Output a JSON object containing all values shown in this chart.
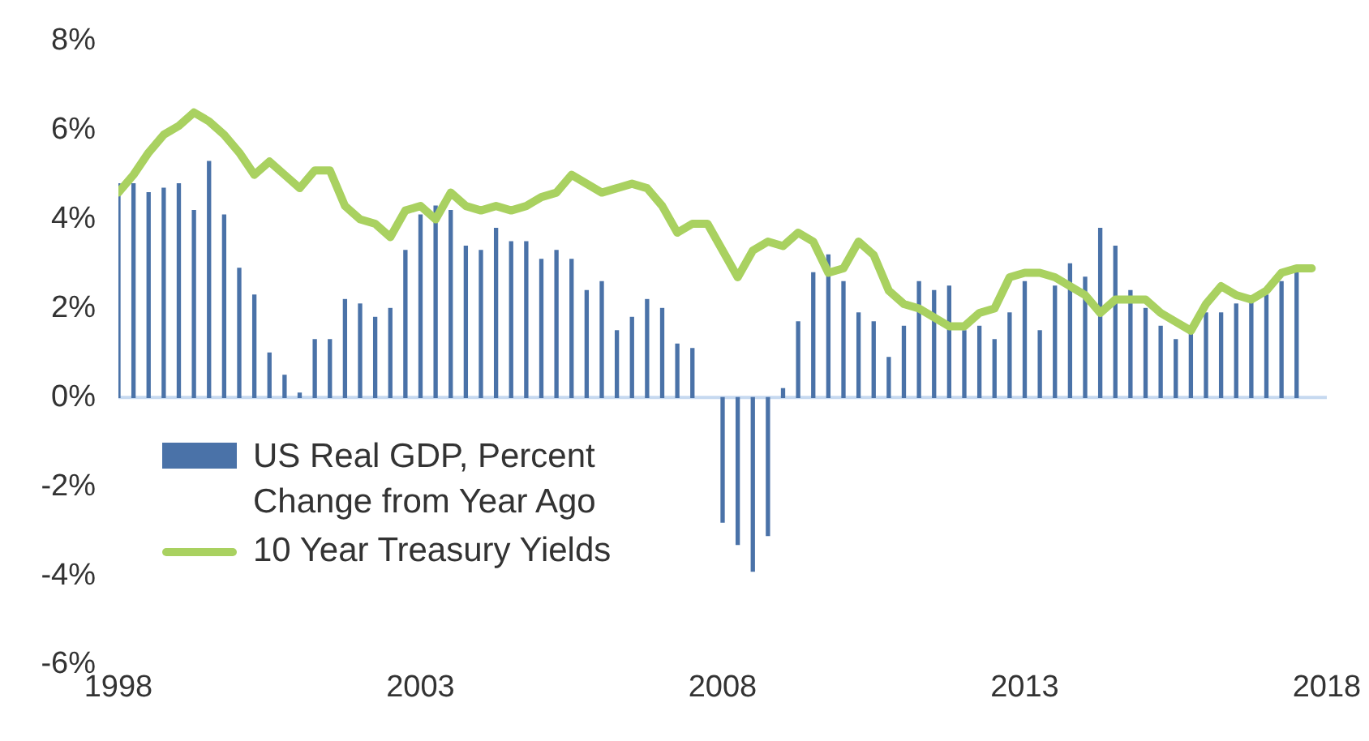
{
  "chart_data": {
    "type": "bar",
    "xlim": [
      1998,
      2018
    ],
    "xticks": [
      1998,
      2003,
      2008,
      2013,
      2018
    ],
    "ylim": [
      -6,
      8
    ],
    "yticks": [
      {
        "value": -6,
        "label": "-6%"
      },
      {
        "value": -4,
        "label": "-4%"
      },
      {
        "value": -2,
        "label": "-2%"
      },
      {
        "value": 0,
        "label": "0%"
      },
      {
        "value": 2,
        "label": "2%"
      },
      {
        "value": 4,
        "label": "4%"
      },
      {
        "value": 6,
        "label": "6%"
      },
      {
        "value": 8,
        "label": "8%"
      }
    ],
    "legend": "bottom left",
    "grid": false,
    "ref_lines": [
      {
        "axis": "y",
        "value": 0,
        "color": "#c6d9f0"
      }
    ],
    "series": [
      {
        "name": "US Real GDP, Percent Change from Year Ago",
        "color": "#4a72a8",
        "x": [
          1998,
          1998.25,
          1998.5,
          1998.75,
          1999,
          1999.25,
          1999.5,
          1999.75,
          2000,
          2000.25,
          2000.5,
          2000.75,
          2001,
          2001.25,
          2001.5,
          2001.75,
          2002,
          2002.25,
          2002.5,
          2002.75,
          2003,
          2003.25,
          2003.5,
          2003.75,
          2004,
          2004.25,
          2004.5,
          2004.75,
          2005,
          2005.25,
          2005.5,
          2005.75,
          2006,
          2006.25,
          2006.5,
          2006.75,
          2007,
          2007.25,
          2007.5,
          2007.75,
          2008,
          2008.25,
          2008.5,
          2008.75,
          2009,
          2009.25,
          2009.5,
          2009.75,
          2010,
          2010.25,
          2010.5,
          2010.75,
          2011,
          2011.25,
          2011.5,
          2011.75,
          2012,
          2012.25,
          2012.5,
          2012.75,
          2013,
          2013.25,
          2013.5,
          2013.75,
          2014,
          2014.25,
          2014.5,
          2014.75,
          2015,
          2015.25,
          2015.5,
          2015.75,
          2016,
          2016.25,
          2016.5,
          2016.75,
          2017,
          2017.25,
          2017.5
        ],
        "values": [
          4.8,
          4.8,
          4.6,
          4.7,
          4.8,
          4.2,
          5.3,
          4.1,
          2.9,
          2.3,
          1.0,
          0.5,
          0.1,
          1.3,
          1.3,
          2.2,
          2.1,
          1.8,
          2.0,
          3.3,
          4.1,
          4.3,
          4.2,
          3.4,
          3.3,
          3.8,
          3.5,
          3.5,
          3.1,
          3.3,
          3.1,
          2.4,
          2.6,
          1.5,
          1.8,
          2.2,
          2.0,
          1.2,
          1.1,
          null,
          -2.8,
          -3.3,
          -3.9,
          -3.1,
          0.2,
          1.7,
          2.8,
          3.2,
          2.6,
          1.9,
          1.7,
          0.9,
          1.6,
          2.6,
          2.4,
          2.5,
          1.5,
          1.6,
          1.3,
          1.9,
          2.6,
          1.5,
          2.5,
          3.0,
          2.7,
          3.8,
          3.4,
          2.4,
          2.0,
          1.6,
          1.3,
          1.5,
          1.9,
          1.9,
          2.1,
          2.2,
          2.3,
          2.6,
          2.8
        ]
      },
      {
        "name": "10 Year Treasury Yields",
        "type": "line",
        "color": "#a9d160",
        "marker": "none",
        "line_style": "solid",
        "x": [
          1998,
          1998.25,
          1998.5,
          1998.75,
          1999,
          1999.25,
          1999.5,
          1999.75,
          2000,
          2000.25,
          2000.5,
          2000.75,
          2001,
          2001.25,
          2001.5,
          2001.75,
          2002,
          2002.25,
          2002.5,
          2002.75,
          2003,
          2003.25,
          2003.5,
          2003.75,
          2004,
          2004.25,
          2004.5,
          2004.75,
          2005,
          2005.25,
          2005.5,
          2005.75,
          2006,
          2006.25,
          2006.5,
          2006.75,
          2007,
          2007.25,
          2007.5,
          2007.75,
          2008,
          2008.25,
          2008.5,
          2008.75,
          2009,
          2009.25,
          2009.5,
          2009.75,
          2010,
          2010.25,
          2010.5,
          2010.75,
          2011,
          2011.25,
          2011.5,
          2011.75,
          2012,
          2012.25,
          2012.5,
          2012.75,
          2013,
          2013.25,
          2013.5,
          2013.75,
          2014,
          2014.25,
          2014.5,
          2014.75,
          2015,
          2015.25,
          2015.5,
          2015.75,
          2016,
          2016.25,
          2016.5,
          2016.75,
          2017,
          2017.25,
          2017.5,
          2017.75
        ],
        "values": [
          4.6,
          5.0,
          5.5,
          5.9,
          6.1,
          6.4,
          6.2,
          5.9,
          5.5,
          5.0,
          5.3,
          5.0,
          4.7,
          5.1,
          5.1,
          4.3,
          4.0,
          3.9,
          3.6,
          4.2,
          4.3,
          4.0,
          4.6,
          4.3,
          4.2,
          4.3,
          4.2,
          4.3,
          4.5,
          4.6,
          5.0,
          4.8,
          4.6,
          4.7,
          4.8,
          4.7,
          4.3,
          3.7,
          3.9,
          3.9,
          3.3,
          2.7,
          3.3,
          3.5,
          3.4,
          3.7,
          3.5,
          2.8,
          2.9,
          3.5,
          3.2,
          2.4,
          2.1,
          2.0,
          1.8,
          1.6,
          1.6,
          1.9,
          2.0,
          2.7,
          2.8,
          2.8,
          2.7,
          2.5,
          2.3,
          1.9,
          2.2,
          2.2,
          2.2,
          1.9,
          1.7,
          1.5,
          2.1,
          2.5,
          2.3,
          2.2,
          2.4,
          2.8,
          2.9,
          2.9
        ]
      }
    ]
  }
}
